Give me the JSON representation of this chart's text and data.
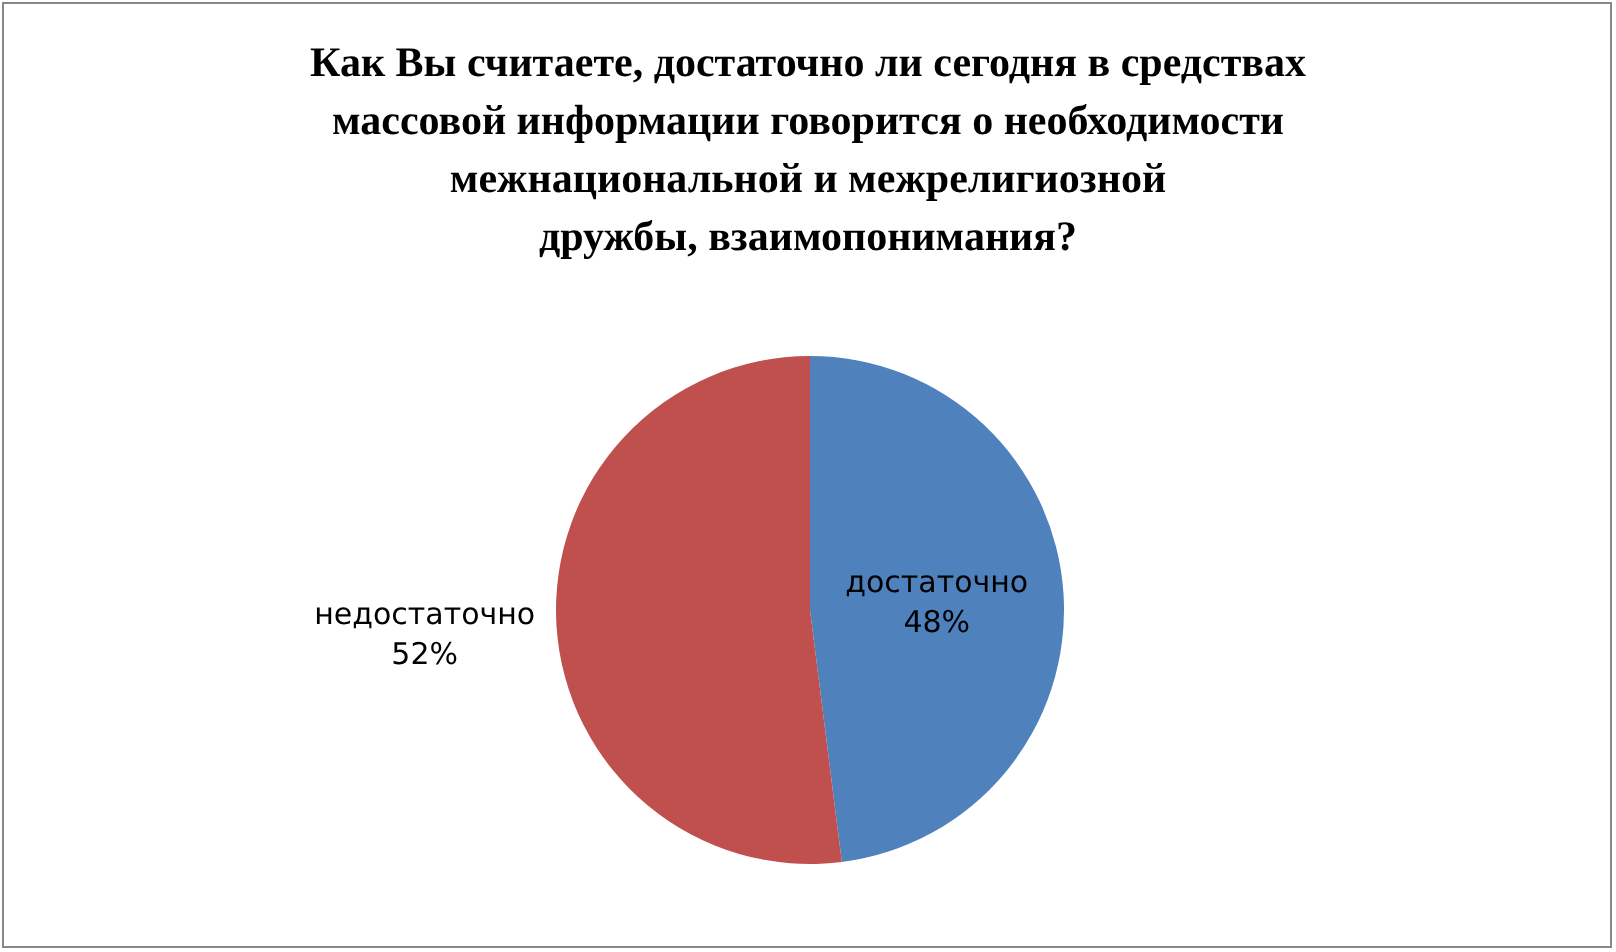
{
  "chart_data": {
    "type": "pie",
    "title": "Как Вы считаете, достаточно ли сегодня в средствах\nмассовой информации говорится о необходимости\nмежнациональной и межрелигиозной\nдружбы, взаимопонимания?",
    "categories": [
      "достаточно",
      "недостаточно"
    ],
    "values": [
      48,
      52
    ],
    "colors": [
      "#4f81bd",
      "#c0504d"
    ],
    "value_labels": [
      "48%",
      "52%"
    ],
    "legend": false
  }
}
